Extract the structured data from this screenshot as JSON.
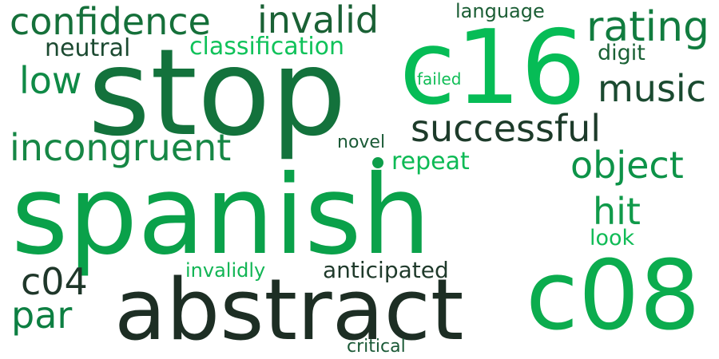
{
  "words": [
    {
      "text": "spanish",
      "color": "#0aa14a"
    },
    {
      "text": "stop",
      "color": "#13723c"
    },
    {
      "text": "c16",
      "color": "#06bc56"
    },
    {
      "text": "abstract",
      "color": "#1d2e24"
    },
    {
      "text": "c08",
      "color": "#0bac4e"
    },
    {
      "text": "confidence",
      "color": "#15703a"
    },
    {
      "text": "invalid",
      "color": "#1a6135"
    },
    {
      "text": "rating",
      "color": "#117c3f"
    },
    {
      "text": "successful",
      "color": "#1d3b2a"
    },
    {
      "text": "incongruent",
      "color": "#168745"
    },
    {
      "text": "music",
      "color": "#1a4a30"
    },
    {
      "text": "object",
      "color": "#0d9348"
    },
    {
      "text": "low",
      "color": "#0f8a46"
    },
    {
      "text": "hit",
      "color": "#109a4a"
    },
    {
      "text": "c04",
      "color": "#1f372a"
    },
    {
      "text": "par",
      "color": "#0d7f42"
    },
    {
      "text": "classification",
      "color": "#10c25a"
    },
    {
      "text": "neutral",
      "color": "#1c4a31"
    },
    {
      "text": "language",
      "color": "#1b5e35"
    },
    {
      "text": "digit",
      "color": "#1a6135"
    },
    {
      "text": "failed",
      "color": "#0fbd56"
    },
    {
      "text": "novel",
      "color": "#1a5a36"
    },
    {
      "text": "repeat",
      "color": "#0dba55"
    },
    {
      "text": "look",
      "color": "#10bb56"
    },
    {
      "text": "anticipated",
      "color": "#1f3a2b"
    },
    {
      "text": "invalidly",
      "color": "#12b555"
    },
    {
      "text": "critical",
      "color": "#1a5936"
    }
  ],
  "dot": {
    "color": "#0d9e4a"
  }
}
